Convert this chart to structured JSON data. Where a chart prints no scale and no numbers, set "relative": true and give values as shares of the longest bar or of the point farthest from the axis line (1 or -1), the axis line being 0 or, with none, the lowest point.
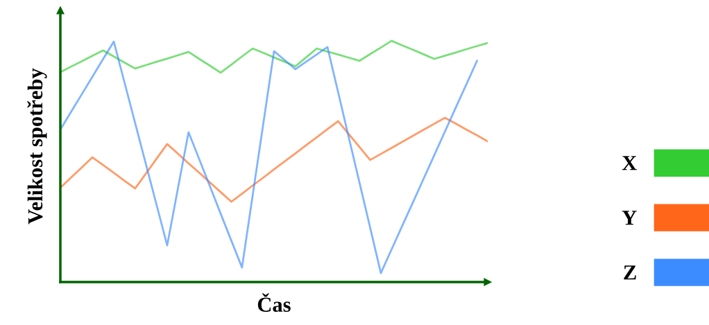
{
  "chart_data": {
    "type": "line",
    "relative": true,
    "xlabel": "Čas",
    "ylabel": "Velikost spotřeby",
    "legend": "right",
    "marker": "none",
    "line_style": "solid",
    "categories": [
      null,
      null,
      null,
      null,
      null,
      null,
      null,
      null,
      null,
      null,
      null,
      null,
      null,
      null,
      null,
      null,
      null,
      null,
      null,
      null,
      null,
      null,
      null,
      null,
      null,
      null,
      null,
      null,
      null,
      null,
      null,
      null,
      null,
      null,
      null,
      null,
      null,
      null,
      null,
      null,
      null
    ],
    "series": [
      {
        "name": "X",
        "color": "#33cc33",
        "values": [
          0.87,
          0.893,
          0.915,
          0.938,
          0.96,
          0.935,
          0.91,
          0.885,
          0.899,
          0.913,
          0.926,
          0.94,
          0.954,
          0.925,
          0.897,
          0.868,
          0.901,
          0.935,
          0.968,
          0.95,
          0.931,
          0.913,
          0.894,
          0.931,
          0.968,
          0.955,
          0.943,
          0.93,
          0.917,
          0.945,
          0.972,
          1.0,
          0.981,
          0.963,
          0.944,
          0.925,
          0.938,
          0.951,
          0.965,
          0.978,
          0.991
        ]
      },
      {
        "name": "Y",
        "color": "#ff6619",
        "values": [
          0.391,
          0.433,
          0.475,
          0.517,
          0.485,
          0.453,
          0.42,
          0.388,
          0.449,
          0.511,
          0.572,
          0.532,
          0.492,
          0.453,
          0.413,
          0.373,
          0.333,
          0.366,
          0.4,
          0.433,
          0.467,
          0.5,
          0.533,
          0.567,
          0.6,
          0.634,
          0.667,
          0.613,
          0.56,
          0.506,
          0.531,
          0.556,
          0.581,
          0.606,
          0.631,
          0.656,
          0.681,
          0.657,
          0.632,
          0.608,
          0.583
        ]
      },
      {
        "name": "Z",
        "color": "#3d8cff",
        "values": [
          0.632,
          0.705,
          0.778,
          0.851,
          0.924,
          0.997,
          0.828,
          0.659,
          0.49,
          0.321,
          0.152,
          0.387,
          0.621,
          0.509,
          0.397,
          0.284,
          0.172,
          0.06,
          0.359,
          0.658,
          0.957,
          0.92,
          0.882,
          0.913,
          0.943,
          0.974,
          0.787,
          0.599,
          0.412,
          0.225,
          0.037,
          0.135,
          0.233,
          0.33,
          0.428,
          0.526,
          0.624,
          0.722,
          0.819,
          0.917,
          null
        ]
      }
    ]
  }
}
